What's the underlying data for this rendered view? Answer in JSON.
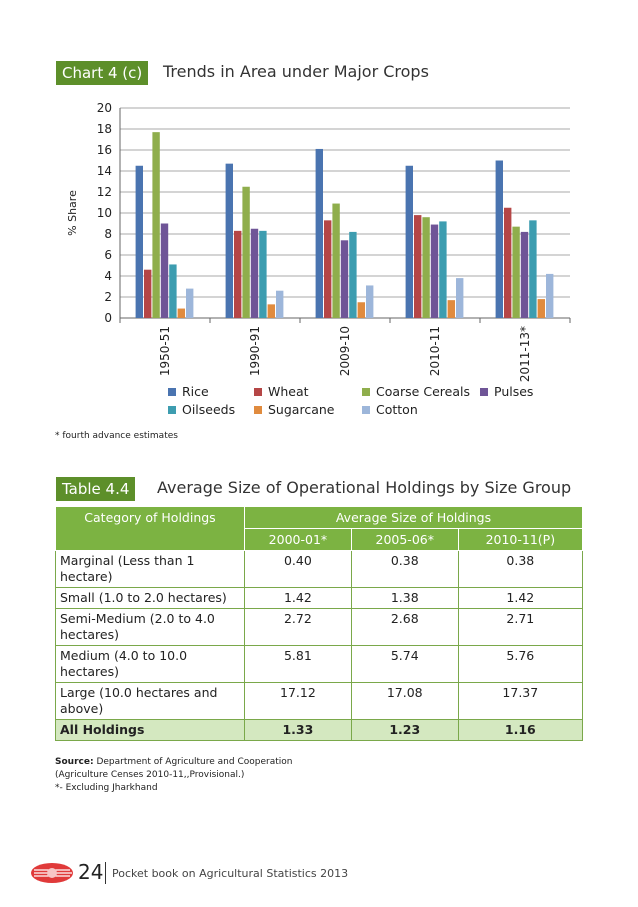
{
  "chart_section": {
    "label": "Chart 4 (c)",
    "title": "Trends in Area under Major Crops",
    "footnote": "* fourth advance estimates"
  },
  "chart_data": {
    "type": "bar",
    "title": "Trends in Area under Major Crops",
    "xlabel": "",
    "ylabel": "% Share",
    "ylim": [
      0,
      20
    ],
    "yticks": [
      0,
      2,
      4,
      6,
      8,
      10,
      12,
      14,
      16,
      18,
      20
    ],
    "categories": [
      "1950-51",
      "1990-91",
      "2009-10",
      "2010-11",
      "2011-13*"
    ],
    "series": [
      {
        "name": "Rice",
        "color": "#4a74b0",
        "values": [
          14.5,
          14.7,
          16.1,
          14.5,
          15.0
        ]
      },
      {
        "name": "Wheat",
        "color": "#b54646",
        "values": [
          4.6,
          8.3,
          9.3,
          9.8,
          10.5
        ]
      },
      {
        "name": "Coarse Cereals",
        "color": "#8fae4c",
        "values": [
          17.7,
          12.5,
          10.9,
          9.6,
          8.7
        ]
      },
      {
        "name": "Pulses",
        "color": "#6f5597",
        "values": [
          9.0,
          8.5,
          7.4,
          8.9,
          8.2
        ]
      },
      {
        "name": "Oilseeds",
        "color": "#3d9db0",
        "values": [
          5.1,
          8.3,
          8.2,
          9.2,
          9.3
        ]
      },
      {
        "name": "Sugarcane",
        "color": "#e08b3e",
        "values": [
          0.9,
          1.3,
          1.5,
          1.7,
          1.8
        ]
      },
      {
        "name": "Cotton",
        "color": "#9db6da",
        "values": [
          2.8,
          2.6,
          3.1,
          3.8,
          4.2
        ]
      }
    ]
  },
  "table_section": {
    "label": "Table 4.4",
    "title": "Average Size of Operational Holdings by Size Group",
    "col_category": "Category of Holdings",
    "col_group": "Average Size of Holdings",
    "years": [
      "2000-01*",
      "2005-06*",
      "2010-11(P)"
    ],
    "rows": [
      {
        "category": "Marginal (Less than 1 hectare)",
        "values": [
          "0.40",
          "0.38",
          "0.38"
        ]
      },
      {
        "category": "Small (1.0 to 2.0 hectares)",
        "values": [
          "1.42",
          "1.38",
          "1.42"
        ]
      },
      {
        "category": "Semi-Medium (2.0 to 4.0 hectares)",
        "values": [
          "2.72",
          "2.68",
          "2.71"
        ]
      },
      {
        "category": "Medium (4.0 to 10.0 hectares)",
        "values": [
          "5.81",
          "5.74",
          "5.76"
        ]
      },
      {
        "category": "Large (10.0 hectares and above)",
        "values": [
          "17.12",
          "17.08",
          "17.37"
        ]
      }
    ],
    "total": {
      "category": "All Holdings",
      "values": [
        "1.33",
        "1.23",
        "1.16"
      ]
    }
  },
  "source": {
    "label": "Source:",
    "text": "Department of Agriculture and Cooperation",
    "line2": "(Agriculture Censes 2010-11,,Provisional.)",
    "line3": "*- Excluding Jharkhand"
  },
  "footer": {
    "page_number": "24",
    "book_title": "Pocket book on Agricultural Statistics 2013"
  }
}
